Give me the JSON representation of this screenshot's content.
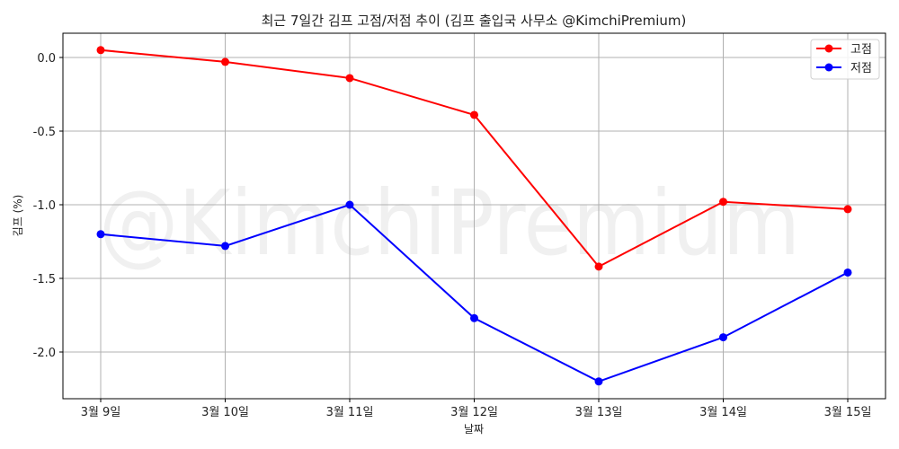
{
  "chart_data": {
    "type": "line",
    "title": "최근 7일간 김프 고점/저점 추이 (김프 출입국 사무소 @KimchiPremium)",
    "xlabel": "날짜",
    "ylabel": "김프 (%)",
    "categories": [
      "3월 9일",
      "3월 10일",
      "3월 11일",
      "3월 12일",
      "3월 13일",
      "3월 14일",
      "3월 15일"
    ],
    "series": [
      {
        "name": "고점",
        "color": "#ff0000",
        "values": [
          0.05,
          -0.03,
          -0.14,
          -0.39,
          -1.42,
          -0.98,
          -1.03
        ]
      },
      {
        "name": "저점",
        "color": "#0000ff",
        "values": [
          -1.2,
          -1.28,
          -1.0,
          -1.77,
          -2.2,
          -1.9,
          -1.46
        ]
      }
    ],
    "yticks": [
      0.0,
      -0.5,
      -1.0,
      -1.5,
      -2.0
    ],
    "ytick_labels": [
      "0.0",
      "-0.5",
      "-1.0",
      "-1.5",
      "-2.0"
    ],
    "ylim": [
      -2.32,
      0.165
    ],
    "grid": true,
    "legend_position": "upper right",
    "watermark": "@KimchiPremium"
  }
}
